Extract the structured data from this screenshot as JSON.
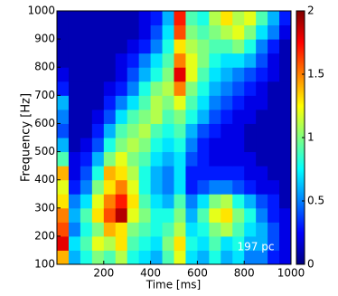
{
  "chart_data": {
    "type": "heatmap",
    "xlabel": "Time [ms]",
    "ylabel": "Frequency [Hz]",
    "annotation": "197 pc",
    "colormap": "jet",
    "xlim": [
      0,
      1000
    ],
    "ylim": [
      100,
      1000
    ],
    "xticks": [
      200,
      400,
      600,
      800,
      1000
    ],
    "yticks": [
      100,
      200,
      300,
      400,
      500,
      600,
      700,
      800,
      900,
      1000
    ],
    "clim": [
      0,
      2
    ],
    "cticks": [
      0,
      0.5,
      1,
      1.5,
      2
    ],
    "x": [
      25,
      75,
      125,
      175,
      225,
      275,
      325,
      375,
      425,
      475,
      525,
      575,
      625,
      675,
      725,
      775,
      825,
      875,
      925,
      975
    ],
    "y": [
      125,
      175,
      225,
      275,
      325,
      375,
      425,
      475,
      525,
      575,
      625,
      675,
      725,
      775,
      825,
      875,
      925,
      975
    ],
    "z": [
      [
        1.4,
        0.6,
        0.8,
        1.0,
        0.9,
        1.1,
        0.8,
        0.7,
        0.6,
        0.9,
        1.2,
        0.7,
        0.6,
        0.8,
        0.6,
        0.7,
        0.5,
        0.5,
        0.3,
        0.2
      ],
      [
        1.8,
        0.7,
        0.9,
        1.2,
        1.1,
        1.3,
        0.9,
        0.8,
        0.7,
        1.0,
        1.3,
        0.8,
        0.7,
        0.9,
        0.7,
        0.8,
        0.6,
        0.6,
        0.4,
        0.2
      ],
      [
        1.6,
        0.5,
        0.8,
        1.0,
        1.4,
        1.3,
        1.0,
        0.9,
        0.8,
        0.9,
        1.1,
        0.7,
        0.8,
        1.0,
        1.1,
        0.9,
        0.7,
        0.6,
        0.4,
        0.2
      ],
      [
        1.5,
        0.6,
        0.9,
        1.3,
        1.6,
        1.9,
        1.2,
        1.0,
        0.8,
        0.8,
        1.0,
        0.6,
        0.9,
        1.2,
        1.3,
        1.0,
        0.8,
        0.5,
        0.3,
        0.2
      ],
      [
        1.3,
        0.5,
        0.7,
        1.2,
        1.5,
        1.7,
        1.3,
        0.9,
        0.7,
        0.6,
        0.9,
        0.5,
        0.7,
        1.0,
        1.1,
        0.8,
        0.6,
        0.4,
        0.3,
        0.1
      ],
      [
        1.2,
        0.3,
        0.5,
        1.0,
        1.3,
        1.5,
        1.2,
        0.8,
        0.6,
        0.5,
        0.7,
        0.3,
        0.4,
        0.5,
        0.5,
        0.4,
        0.3,
        0.2,
        0.2,
        0.1
      ],
      [
        1.4,
        0.2,
        0.4,
        0.8,
        1.4,
        1.3,
        1.1,
        0.8,
        0.6,
        0.5,
        0.7,
        0.3,
        0.3,
        0.3,
        0.3,
        0.3,
        0.2,
        0.2,
        0.1,
        0.1
      ],
      [
        0.9,
        0.2,
        0.3,
        0.6,
        1.0,
        1.2,
        1.0,
        0.9,
        0.7,
        0.6,
        0.7,
        0.4,
        0.3,
        0.2,
        0.2,
        0.2,
        0.2,
        0.1,
        0.1,
        0.1
      ],
      [
        0.6,
        0.1,
        0.2,
        0.4,
        0.8,
        1.0,
        1.1,
        1.0,
        0.8,
        0.7,
        0.8,
        0.5,
        0.3,
        0.2,
        0.2,
        0.2,
        0.1,
        0.1,
        0.1,
        0.1
      ],
      [
        0.4,
        0.1,
        0.1,
        0.3,
        0.6,
        0.9,
        1.0,
        1.1,
        0.9,
        0.8,
        0.9,
        0.6,
        0.4,
        0.3,
        0.2,
        0.2,
        0.1,
        0.1,
        0.1,
        0.1
      ],
      [
        0.5,
        0.1,
        0.1,
        0.2,
        0.4,
        0.7,
        0.9,
        1.0,
        1.1,
        0.9,
        1.0,
        0.8,
        0.6,
        0.4,
        0.3,
        0.2,
        0.2,
        0.1,
        0.1,
        0.1
      ],
      [
        0.6,
        0.1,
        0.1,
        0.1,
        0.3,
        0.5,
        0.7,
        0.9,
        1.1,
        1.0,
        1.2,
        0.9,
        0.7,
        0.5,
        0.4,
        0.3,
        0.2,
        0.2,
        0.1,
        0.1
      ],
      [
        0.3,
        0.1,
        0.1,
        0.1,
        0.2,
        0.3,
        0.5,
        0.8,
        1.0,
        1.1,
        1.5,
        1.0,
        0.8,
        0.6,
        0.5,
        0.4,
        0.3,
        0.2,
        0.1,
        0.1
      ],
      [
        0.2,
        0.1,
        0.1,
        0.1,
        0.1,
        0.2,
        0.4,
        0.6,
        0.8,
        1.0,
        1.8,
        1.2,
        0.9,
        0.7,
        0.6,
        0.5,
        0.4,
        0.3,
        0.2,
        0.1
      ],
      [
        0.1,
        0.1,
        0.1,
        0.1,
        0.1,
        0.2,
        0.3,
        0.5,
        0.7,
        0.9,
        1.5,
        1.2,
        1.0,
        0.8,
        0.7,
        0.7,
        0.6,
        0.4,
        0.2,
        0.1
      ],
      [
        0.1,
        0.1,
        0.1,
        0.1,
        0.1,
        0.1,
        0.2,
        0.3,
        0.5,
        0.8,
        1.3,
        1.1,
        1.0,
        0.9,
        0.9,
        1.0,
        0.8,
        0.5,
        0.3,
        0.1
      ],
      [
        0.1,
        0.1,
        0.1,
        0.1,
        0.1,
        0.1,
        0.1,
        0.2,
        0.4,
        0.7,
        1.6,
        1.0,
        0.9,
        1.0,
        1.1,
        1.2,
        1.0,
        0.7,
        0.5,
        0.2
      ],
      [
        0.1,
        0.1,
        0.1,
        0.1,
        0.1,
        0.1,
        0.1,
        0.2,
        0.3,
        0.6,
        1.7,
        0.9,
        0.8,
        1.1,
        1.3,
        1.1,
        1.2,
        0.9,
        0.6,
        0.3
      ]
    ]
  }
}
